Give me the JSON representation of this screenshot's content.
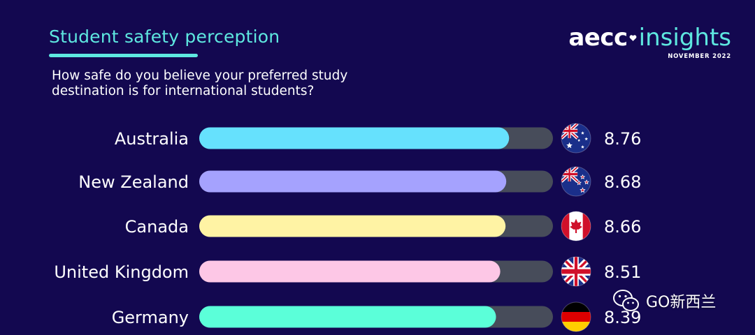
{
  "header": {
    "title": "Student safety perception",
    "subtitle": "How safe do you believe your preferred study destination is for international students?",
    "brand_aecc": "aecc",
    "brand_insights": "insights",
    "brand_date": "NOVEMBER 2022"
  },
  "watermark": {
    "text": "GO新西兰",
    "icon": "wechat-icon"
  },
  "colors": {
    "background": "#130850",
    "accent": "#5ee8e0",
    "track": "#474c5a"
  },
  "chart_data": {
    "type": "bar",
    "orientation": "horizontal",
    "categories": [
      "Australia",
      "New Zealand",
      "Canada",
      "United Kingdom",
      "Germany"
    ],
    "values": [
      8.76,
      8.68,
      8.66,
      8.51,
      8.39
    ],
    "value_labels": [
      "8.76",
      "8.68",
      "8.66",
      "8.51",
      "8.39"
    ],
    "bar_colors": [
      "#66e1fd",
      "#a5a2fe",
      "#fff3a4",
      "#fdc7e6",
      "#5bffd9"
    ],
    "flags": [
      "australia-flag",
      "new-zealand-flag",
      "canada-flag",
      "united-kingdom-flag",
      "germany-flag"
    ],
    "xlim": [
      0,
      10
    ],
    "grid": false,
    "legend": "none"
  }
}
